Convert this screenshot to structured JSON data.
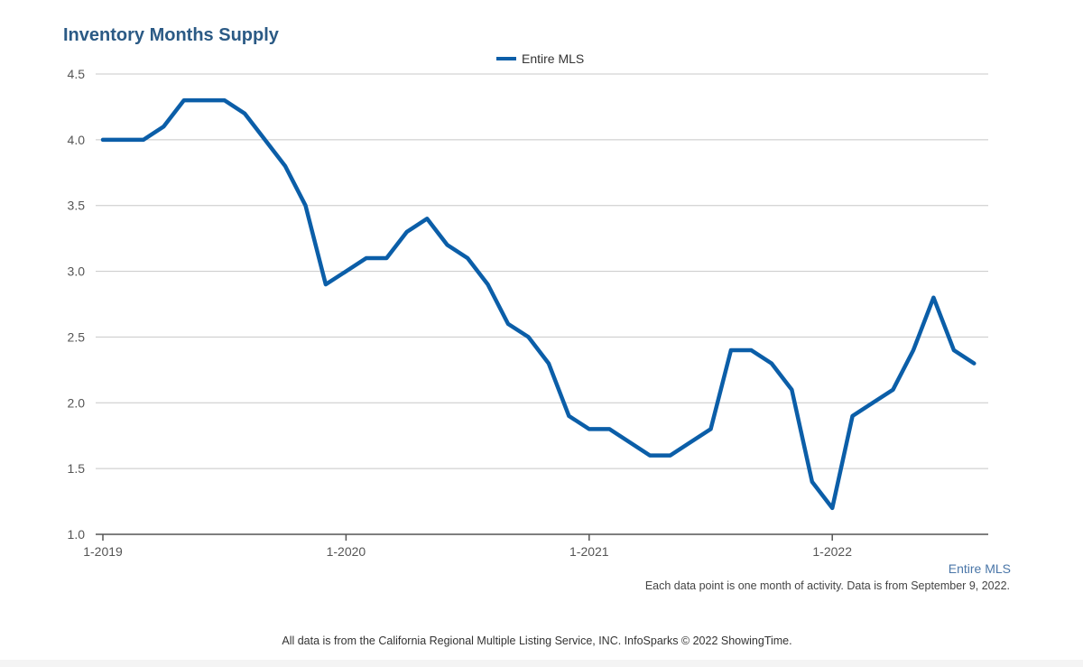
{
  "colors": {
    "line": "#0b5ea8",
    "grid": "#c8c8c8",
    "axis": "#555555",
    "title": "#2b5a85",
    "series_label": "#4a76a8"
  },
  "chart_data": {
    "type": "line",
    "title": "Inventory Months Supply",
    "xlabel": "",
    "ylabel": "",
    "ylim": [
      1.0,
      4.5
    ],
    "grid": true,
    "legend": "top-center",
    "y_ticks": [
      "1.0",
      "1.5",
      "2.0",
      "2.5",
      "3.0",
      "3.5",
      "4.0",
      "4.5"
    ],
    "x_ticks": [
      "1-2019",
      "1-2020",
      "1-2021",
      "1-2022"
    ],
    "series": [
      {
        "name": "Entire MLS",
        "x": [
          "1-2019",
          "2-2019",
          "3-2019",
          "4-2019",
          "5-2019",
          "6-2019",
          "7-2019",
          "8-2019",
          "9-2019",
          "10-2019",
          "11-2019",
          "12-2019",
          "1-2020",
          "2-2020",
          "3-2020",
          "4-2020",
          "5-2020",
          "6-2020",
          "7-2020",
          "8-2020",
          "9-2020",
          "10-2020",
          "11-2020",
          "12-2020",
          "1-2021",
          "2-2021",
          "3-2021",
          "4-2021",
          "5-2021",
          "6-2021",
          "7-2021",
          "8-2021",
          "9-2021",
          "10-2021",
          "11-2021",
          "12-2021",
          "1-2022",
          "2-2022",
          "3-2022",
          "4-2022",
          "5-2022",
          "6-2022",
          "7-2022",
          "8-2022"
        ],
        "values": [
          4.0,
          4.0,
          4.0,
          4.1,
          4.3,
          4.3,
          4.3,
          4.2,
          4.0,
          3.8,
          3.5,
          2.9,
          3.0,
          3.1,
          3.1,
          3.3,
          3.4,
          3.2,
          3.1,
          2.9,
          2.6,
          2.5,
          2.3,
          1.9,
          1.8,
          1.8,
          1.7,
          1.6,
          1.6,
          1.7,
          1.8,
          2.4,
          2.4,
          2.3,
          2.1,
          1.4,
          1.2,
          1.9,
          2.0,
          2.1,
          2.4,
          2.8,
          2.4,
          2.3
        ]
      }
    ],
    "series_label": "Entire MLS",
    "note": "Each data point is one month of activity. Data is from September 9, 2022."
  },
  "footer": {
    "source": "All data is from the California Regional Multiple Listing Service, INC. InfoSparks © 2022 ShowingTime."
  }
}
